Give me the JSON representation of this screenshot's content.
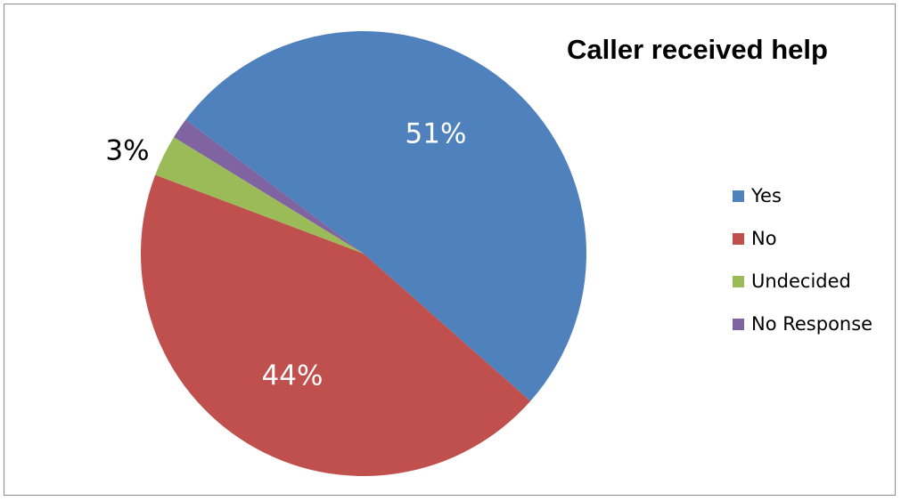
{
  "chart_data": {
    "type": "pie",
    "title": "Caller received help",
    "slices": [
      {
        "name": "Yes",
        "value": 51,
        "label": "51%",
        "color": "#4F81BD"
      },
      {
        "name": "No",
        "value": 44,
        "label": "44%",
        "color": "#C0504D"
      },
      {
        "name": "Undecided",
        "value": 3,
        "label": "3%",
        "color": "#9BBB59"
      },
      {
        "name": "No Response",
        "value": 1.5,
        "label": "",
        "color": "#8064A2"
      }
    ],
    "legend_position": "right"
  }
}
